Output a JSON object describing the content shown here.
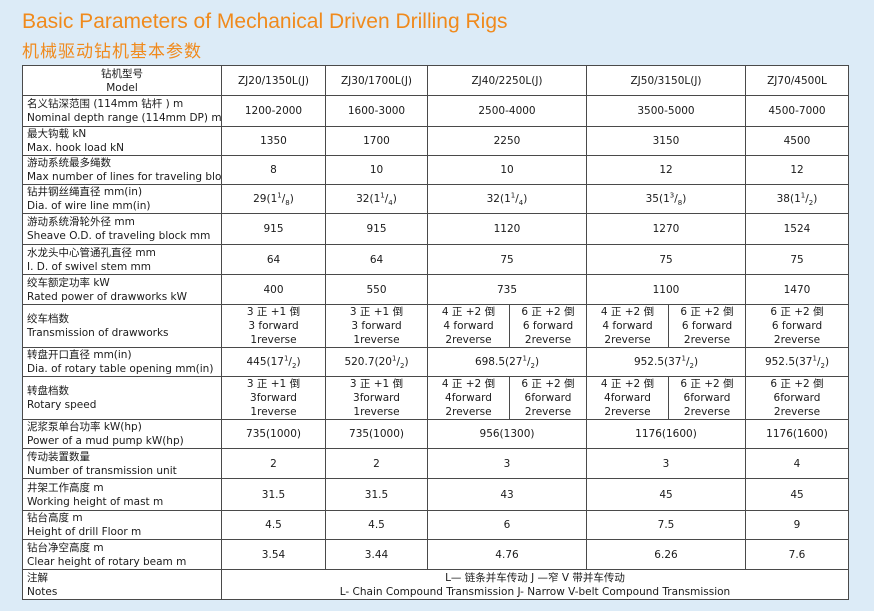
{
  "title_en": "Basic Parameters of Mechanical Driven Drilling Rigs",
  "title_cn": "机械驱动钻机基本参数",
  "header": {
    "label_cn": "钻机型号",
    "label_en": "Model",
    "models": [
      "ZJ20/1350L(J)",
      "ZJ30/1700L(J)",
      "ZJ40/2250L(J)",
      "ZJ50/3150L(J)",
      "ZJ70/4500L"
    ]
  },
  "rows": {
    "depth": {
      "label_cn": "名义钻深范围 (114mm 钻杆 )   m",
      "label_en": "Nominal depth range (114mm DP)    m",
      "v1": "1200-2000",
      "v2": "1600-3000",
      "v3": "2500-4000",
      "v4": "3500-5000",
      "v5": "4500-7000"
    },
    "hook": {
      "label_cn": "最大钩载  kN",
      "label_en": "Max. hook load kN",
      "v1": "1350",
      "v2": "1700",
      "v3": "2250",
      "v4": "3150",
      "v5": "4500"
    },
    "lines": {
      "label_cn": "游动系统最多绳数",
      "label_en": "Max number of lines for traveling block",
      "v1": "8",
      "v2": "10",
      "v3": "10",
      "v4": "12",
      "v5": "12"
    },
    "wire": {
      "label_cn": "钻井钢丝绳直径  mm(in)",
      "label_en": "Dia. of wire line   mm(in)",
      "v1": {
        "base": "29(1",
        "num": "1",
        "den": "8",
        "tail": ")"
      },
      "v2": {
        "base": "32(1",
        "num": "1",
        "den": "4",
        "tail": ")"
      },
      "v3": {
        "base": "32(1",
        "num": "1",
        "den": "4",
        "tail": ")"
      },
      "v4": {
        "base": "35(1",
        "num": "3",
        "den": "8",
        "tail": ")"
      },
      "v5": {
        "base": "38(1",
        "num": "1",
        "den": "2",
        "tail": ")"
      }
    },
    "sheave": {
      "label_cn": "游动系统滑轮外径  mm",
      "label_en": "Sheave O.D. of traveling block      mm",
      "v1": "915",
      "v2": "915",
      "v3": "1120",
      "v4": "1270",
      "v5": "1524"
    },
    "swivel": {
      "label_cn": "水龙头中心管通孔直径  mm",
      "label_en": "I. D. of swivel stem  mm",
      "v1": "64",
      "v2": "64",
      "v3": "75",
      "v4": "75",
      "v5": "75"
    },
    "power": {
      "label_cn": "绞车额定功率   kW",
      "label_en": "Rated power of drawworks   kW",
      "v1": "400",
      "v2": "550",
      "v3": "735",
      "v4": "1100",
      "v5": "1470"
    },
    "trans": {
      "label_cn": "绞车档数",
      "label_en": "Transmission of drawworks",
      "c1": [
        "3 正 +1 倒",
        "3 forward",
        "1reverse"
      ],
      "c2": [
        "3 正 +1 倒",
        "3 forward",
        "1reverse"
      ],
      "c3a": [
        "4 正 +2 倒",
        "4 forward",
        "2reverse"
      ],
      "c3b": [
        "6 正 +2 倒",
        "6 forward",
        "2reverse"
      ],
      "c4a": [
        "4 正 +2 倒",
        "4 forward",
        "2reverse"
      ],
      "c4b": [
        "6 正 +2 倒",
        "6 forward",
        "2reverse"
      ],
      "c5": [
        "6 正 +2 倒",
        "6 forward",
        "2reverse"
      ]
    },
    "rotary": {
      "label_cn": "转盘开口直径  mm(in)",
      "label_en": "Dia. of rotary table opening  mm(in)",
      "v1": {
        "base": "445(17",
        "num": "1",
        "den": "2",
        "tail": ")"
      },
      "v2": {
        "base": "520.7(20",
        "num": "1",
        "den": "2",
        "tail": ")"
      },
      "v3": {
        "base": "698.5(27",
        "num": "1",
        "den": "2",
        "tail": ")"
      },
      "v4": {
        "base": "952.5(37",
        "num": "1",
        "den": "2",
        "tail": ")"
      },
      "v5": {
        "base": "952.5(37",
        "num": "1",
        "den": "2",
        "tail": ")"
      }
    },
    "speed": {
      "label_cn": "转盘档数",
      "label_en": "Rotary speed",
      "c1": [
        "3 正 +1 倒",
        "3forward",
        "1reverse"
      ],
      "c2": [
        "3 正 +1 倒",
        "3forward",
        "1reverse"
      ],
      "c3a": [
        "4 正 +2 倒",
        "4forward",
        "2reverse"
      ],
      "c3b": [
        "6 正 +2 倒",
        "6forward",
        "2reverse"
      ],
      "c4a": [
        "4 正 +2 倒",
        "4forward",
        "2reverse"
      ],
      "c4b": [
        "6 正 +2 倒",
        "6forward",
        "2reverse"
      ],
      "c5": [
        "6 正 +2 倒",
        "6forward",
        "2reverse"
      ]
    },
    "pump": {
      "label_cn": "泥浆泵单台功率  kW(hp)",
      "label_en": "Power of a mud pump   kW(hp)",
      "v1": "735(1000)",
      "v2": "735(1000)",
      "v3": "956(1300)",
      "v4": "1176(1600)",
      "v5": "1176(1600)"
    },
    "units": {
      "label_cn": "传动装置数量",
      "label_en": "Number of transmission unit",
      "v1": "2",
      "v2": "2",
      "v3": "3",
      "v4": "3",
      "v5": "4"
    },
    "mast": {
      "label_cn": "井架工作高度    m",
      "label_en": "Working height of mast       m",
      "v1": "31.5",
      "v2": "31.5",
      "v3": "43",
      "v4": "45",
      "v5": "45"
    },
    "floor": {
      "label_cn": "钻台高度    m",
      "label_en": "Height of drill Floor          m",
      "v1": "4.5",
      "v2": "4.5",
      "v3": "6",
      "v4": "7.5",
      "v5": "9"
    },
    "beam": {
      "label_cn": "钻台净空高度    m",
      "label_en": "Clear height of rotary beam m",
      "v1": "3.54",
      "v2": "3.44",
      "v3": "4.76",
      "v4": "6.26",
      "v5": "7.6"
    },
    "notes": {
      "label_cn": "注解",
      "label_en": "Notes",
      "text_cn": "L— 链条并车传动 J —窄 V 带并车传动",
      "text_en": "L- Chain Compound Transmission   J- Narrow V-belt Compound Transmission"
    }
  }
}
